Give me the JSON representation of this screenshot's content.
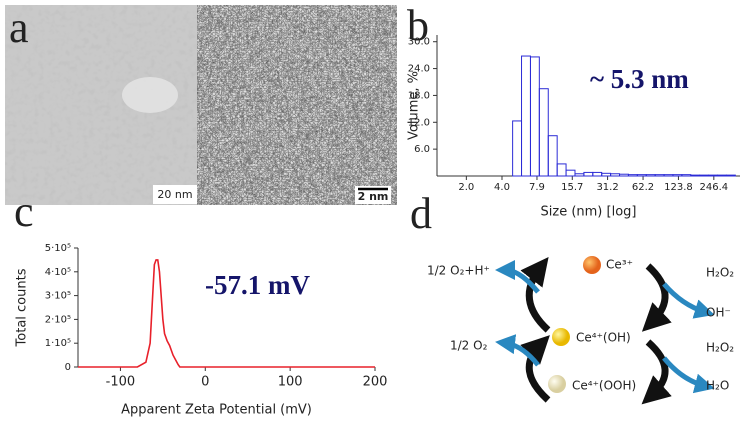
{
  "panel_labels": [
    "a",
    "b",
    "c",
    "d"
  ],
  "images": {
    "scale_bars": [
      "20 nm",
      "2 nm"
    ]
  },
  "chart_data": [
    {
      "type": "histogram",
      "xlabel": "Size (nm) [log]",
      "ylabel": "Volume, %",
      "annotation": "~ 5.3 nm",
      "xscale": "log",
      "color": "#2b2bd6",
      "bins": [
        4.92,
        5.85,
        6.96,
        8.27,
        9.84,
        11.7,
        13.91,
        16.55,
        19.68,
        23.4,
        27.83,
        33.09,
        39.36,
        46.8,
        55.66,
        66.19,
        78.72,
        93.61,
        111.32,
        132.39,
        157.44,
        187.22,
        222.65,
        264.78,
        314.88,
        374.45
      ],
      "values": [
        12.3,
        26.8,
        26.6,
        19.5,
        9,
        2.7,
        1.3,
        0.5,
        0.8,
        0.8,
        0.6,
        0.5,
        0.4,
        0.3,
        0.3,
        0.3,
        0.3,
        0.3,
        0.3,
        0.3,
        0.2,
        0.2,
        0.2,
        0.2,
        0.2
      ],
      "xlim": [
        1.13,
        410
      ],
      "ylim": [
        0,
        31.5
      ],
      "xticks": [
        {
          "value": 2,
          "label": "2.0"
        },
        {
          "value": 4,
          "label": "4.0"
        },
        7.9,
        15.7,
        31.2,
        62.2,
        123.8,
        246.4
      ],
      "yticks": [
        {
          "value": 6,
          "label": "6.0"
        },
        {
          "value": 12,
          "label": "12.0"
        },
        {
          "value": 18,
          "label": "18.0"
        },
        {
          "value": 24,
          "label": "24.0"
        },
        {
          "value": 30,
          "label": "30.0"
        }
      ]
    },
    {
      "type": "line",
      "xlabel": "Apparent Zeta Potential (mV)",
      "ylabel": "Total counts",
      "annotation": "-57.1 mV",
      "color": "#e8202a",
      "x": [
        -150,
        -80,
        -70,
        -65,
        -62,
        -60,
        -58,
        -56,
        -54,
        -52,
        -50,
        -48,
        -45,
        -42,
        -40,
        -38,
        -35,
        -32,
        -30,
        -25,
        200
      ],
      "values": [
        0,
        0,
        20000,
        100000,
        300000,
        430000,
        450000,
        450000,
        400000,
        300000,
        200000,
        140000,
        110000,
        90000,
        70000,
        50000,
        30000,
        10000,
        0,
        0,
        0
      ],
      "xlim": [
        -150,
        200
      ],
      "ylim": [
        0,
        500000
      ],
      "xticks": [
        -100,
        0,
        100,
        200
      ],
      "yticks": [
        0,
        {
          "value": 100000,
          "label": "1·10⁵"
        },
        {
          "value": 200000,
          "label": "2·10⁵"
        },
        {
          "value": 300000,
          "label": "3·10⁵"
        },
        {
          "value": 400000,
          "label": "4·10⁵"
        },
        {
          "value": 500000,
          "label": "5·10⁵"
        }
      ]
    }
  ],
  "diagram": {
    "species": [
      "Ce³⁺",
      "Ce⁴⁺(OH)",
      "Ce⁴⁺(OOH)"
    ],
    "left": [
      "1/2 O₂+H⁺",
      "1/2 O₂"
    ],
    "right": [
      "H₂O₂",
      "OH⁻",
      "H₂O₂",
      "H₂O"
    ]
  }
}
